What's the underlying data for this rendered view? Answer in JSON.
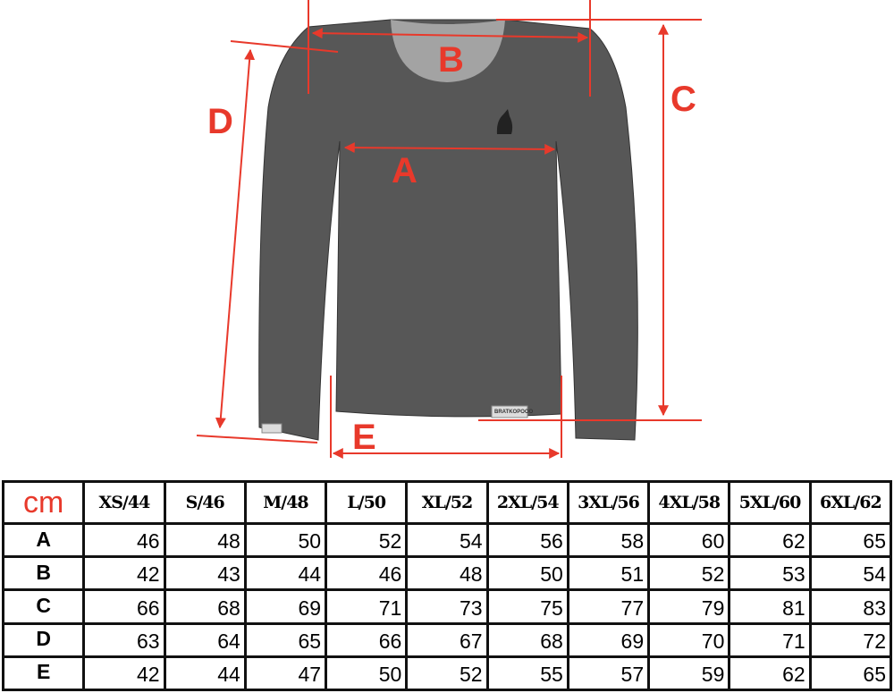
{
  "diagram": {
    "labels": {
      "A": "A",
      "B": "B",
      "C": "C",
      "D": "D",
      "E": "E"
    },
    "colors": {
      "garment": "#575757",
      "collar": "#a3a3a3",
      "annotation": "#e8392b"
    },
    "logo_icon": "knight-helmet-icon",
    "tag_text": "BRATKOPOOO"
  },
  "table": {
    "unit": "cm",
    "sizes": [
      "XS/44",
      "S/46",
      "M/48",
      "L/50",
      "XL/52",
      "2XL/54",
      "3XL/56",
      "4XL/58",
      "5XL/60",
      "6XL/62"
    ],
    "rows": [
      {
        "label": "A",
        "values": [
          "46",
          "48",
          "50",
          "52",
          "54",
          "56",
          "58",
          "60",
          "62",
          "65"
        ]
      },
      {
        "label": "B",
        "values": [
          "42",
          "43",
          "44",
          "46",
          "48",
          "50",
          "51",
          "52",
          "53",
          "54"
        ]
      },
      {
        "label": "C",
        "values": [
          "66",
          "68",
          "69",
          "71",
          "73",
          "75",
          "77",
          "79",
          "81",
          "83"
        ]
      },
      {
        "label": "D",
        "values": [
          "63",
          "64",
          "65",
          "66",
          "67",
          "68",
          "69",
          "70",
          "71",
          "72"
        ]
      },
      {
        "label": "E",
        "values": [
          "42",
          "44",
          "47",
          "50",
          "52",
          "55",
          "57",
          "59",
          "62",
          "65"
        ]
      }
    ]
  }
}
